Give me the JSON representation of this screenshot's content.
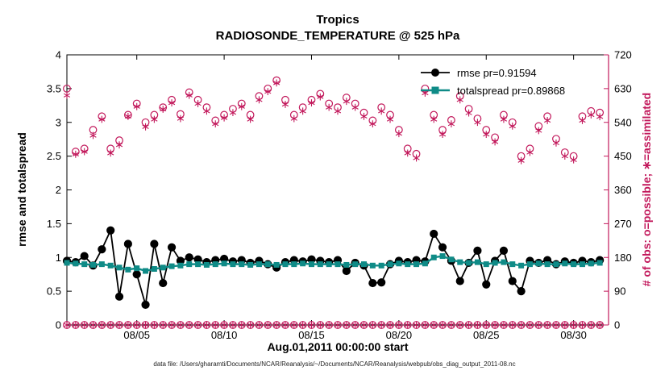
{
  "caption": "data file: /Users/gharamti/Documents/NCAR/Reanalysis/~/Documents/NCAR/Reanalysis/webpub/obs_diag_output_2011-08.nc",
  "chart_data": {
    "type": "line",
    "title": "Tropics",
    "subtitle": "RADIOSONDE_TEMPERATURE @ 525 hPa",
    "xlabel": "Aug.01,2011 00:00:00 start",
    "ylabel_left": "rmse and totalspread",
    "ylabel_right": "# of obs: o=possible; ∗=assimilated",
    "colors": {
      "obs": "#C2185B",
      "rmse": "#000000",
      "totalspread": "#0F8B87"
    },
    "x_range": [
      1,
      32
    ],
    "left_axis": {
      "min": 0,
      "max": 4,
      "ticks": [
        0,
        0.5,
        1,
        1.5,
        2,
        2.5,
        3,
        3.5,
        4
      ]
    },
    "right_axis": {
      "min": 0,
      "max": 720,
      "ticks": [
        0,
        90,
        180,
        270,
        360,
        450,
        540,
        630,
        720
      ]
    },
    "x_ticks": {
      "values": [
        5,
        10,
        15,
        20,
        25,
        30
      ],
      "labels": [
        "08/05",
        "08/10",
        "08/15",
        "08/20",
        "08/25",
        "08/30"
      ]
    },
    "x": [
      1,
      1.5,
      2,
      2.5,
      3,
      3.5,
      4,
      4.5,
      5,
      5.5,
      6,
      6.5,
      7,
      7.5,
      8,
      8.5,
      9,
      9.5,
      10,
      10.5,
      11,
      11.5,
      12,
      12.5,
      13,
      13.5,
      14,
      14.5,
      15,
      15.5,
      16,
      16.5,
      17,
      17.5,
      18,
      18.5,
      19,
      19.5,
      20,
      20.5,
      21,
      21.5,
      22,
      22.5,
      23,
      23.5,
      24,
      24.5,
      25,
      25.5,
      26,
      26.5,
      27,
      27.5,
      28,
      28.5,
      29,
      29.5,
      30,
      30.5,
      31,
      31.5
    ],
    "series": [
      {
        "name": "rmse",
        "label": "rmse pr=0.91594",
        "axis": "left",
        "color": "#000000",
        "marker": "filled-circle",
        "line": true,
        "values": [
          0.95,
          0.93,
          1.02,
          0.88,
          1.12,
          1.4,
          0.42,
          1.2,
          0.75,
          0.3,
          1.2,
          0.62,
          1.15,
          0.95,
          1.0,
          0.97,
          0.93,
          0.96,
          0.98,
          0.94,
          0.96,
          0.92,
          0.95,
          0.9,
          0.85,
          0.93,
          0.96,
          0.94,
          0.97,
          0.95,
          0.93,
          0.96,
          0.8,
          0.92,
          0.88,
          0.62,
          0.63,
          0.9,
          0.95,
          0.93,
          0.96,
          0.94,
          1.35,
          1.15,
          0.95,
          0.65,
          0.92,
          1.1,
          0.6,
          0.95,
          1.1,
          0.65,
          0.5,
          0.95,
          0.92,
          0.96,
          0.9,
          0.94,
          0.92,
          0.95,
          0.93,
          0.96
        ]
      },
      {
        "name": "totalspread",
        "label": "totalspread pr=0.89868",
        "axis": "left",
        "color": "#0F8B87",
        "marker": "filled-square",
        "line": true,
        "values": [
          0.92,
          0.91,
          0.9,
          0.89,
          0.9,
          0.88,
          0.85,
          0.82,
          0.84,
          0.8,
          0.83,
          0.85,
          0.87,
          0.88,
          0.9,
          0.9,
          0.89,
          0.9,
          0.91,
          0.9,
          0.9,
          0.89,
          0.9,
          0.9,
          0.89,
          0.9,
          0.9,
          0.91,
          0.9,
          0.9,
          0.9,
          0.9,
          0.89,
          0.9,
          0.9,
          0.88,
          0.88,
          0.9,
          0.91,
          0.9,
          0.9,
          0.91,
          1.0,
          1.02,
          0.97,
          0.93,
          0.92,
          0.93,
          0.9,
          0.92,
          0.93,
          0.9,
          0.88,
          0.9,
          0.91,
          0.9,
          0.9,
          0.91,
          0.9,
          0.9,
          0.91,
          0.92
        ]
      },
      {
        "name": "obs-possible",
        "label": "o=possible",
        "axis": "right",
        "color": "#C2185B",
        "marker": "open-circle",
        "line": false,
        "values": [
          630,
          462,
          470,
          520,
          556,
          470,
          492,
          560,
          590,
          540,
          560,
          580,
          600,
          562,
          620,
          600,
          580,
          545,
          560,
          576,
          590,
          560,
          610,
          630,
          652,
          600,
          560,
          580,
          600,
          616,
          590,
          580,
          606,
          590,
          566,
          545,
          580,
          560,
          520,
          470,
          456,
          630,
          560,
          520,
          546,
          610,
          576,
          550,
          520,
          500,
          560,
          540,
          450,
          470,
          530,
          556,
          496,
          460,
          450,
          556,
          570,
          566
        ]
      },
      {
        "name": "obs-assimilated",
        "label": "∗=assimilated",
        "axis": "right",
        "color": "#C2185B",
        "marker": "asterisk",
        "line": false,
        "values": [
          612,
          455,
          462,
          505,
          548,
          458,
          480,
          556,
          582,
          528,
          548,
          575,
          592,
          550,
          612,
          590,
          570,
          536,
          552,
          566,
          582,
          548,
          600,
          622,
          645,
          588,
          550,
          570,
          592,
          608,
          580,
          570,
          596,
          580,
          556,
          536,
          570,
          548,
          510,
          458,
          445,
          618,
          548,
          508,
          536,
          600,
          565,
          540,
          508,
          488,
          548,
          530,
          438,
          460,
          518,
          545,
          485,
          450,
          440,
          545,
          560,
          555
        ]
      }
    ],
    "zero_row": {
      "axis": "right",
      "value": 0,
      "markers": [
        "open-circle",
        "asterisk"
      ]
    }
  }
}
